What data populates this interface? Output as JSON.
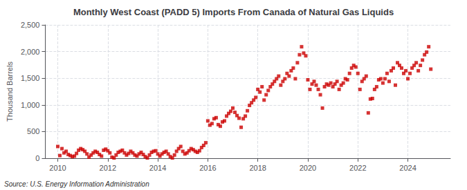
{
  "chart_data": {
    "type": "scatter",
    "title": "Monthly West Coast (PADD 5) Imports From Canada of Natural Gas Liquids",
    "ylabel": "Thousand Barrels",
    "source": "Source: U.S. Energy Information Administration",
    "color": "#cc0000",
    "marker": "square",
    "grid": true,
    "xlim": [
      2009.5,
      2025.7
    ],
    "xticks": [
      2010,
      2012,
      2014,
      2016,
      2018,
      2020,
      2022,
      2024
    ],
    "ylim": [
      0,
      2500
    ],
    "yticks": [
      0,
      500,
      {
        "value": 1000,
        "label": "1,000"
      },
      {
        "value": 1500,
        "label": "1,500"
      },
      {
        "value": 2000,
        "label": "2,000"
      },
      {
        "value": 2500,
        "label": "2,500"
      }
    ],
    "x": [
      2010.0,
      2010.083,
      2010.167,
      2010.25,
      2010.333,
      2010.417,
      2010.5,
      2010.583,
      2010.667,
      2010.75,
      2010.833,
      2010.917,
      2011.0,
      2011.083,
      2011.167,
      2011.25,
      2011.333,
      2011.417,
      2011.5,
      2011.583,
      2011.667,
      2011.75,
      2011.833,
      2011.917,
      2012.0,
      2012.083,
      2012.167,
      2012.25,
      2012.333,
      2012.417,
      2012.5,
      2012.583,
      2012.667,
      2012.75,
      2012.833,
      2012.917,
      2013.0,
      2013.083,
      2013.167,
      2013.25,
      2013.333,
      2013.417,
      2013.5,
      2013.583,
      2013.667,
      2013.75,
      2013.833,
      2013.917,
      2014.0,
      2014.083,
      2014.167,
      2014.25,
      2014.333,
      2014.417,
      2014.5,
      2014.583,
      2014.667,
      2014.75,
      2014.833,
      2014.917,
      2015.0,
      2015.083,
      2015.167,
      2015.25,
      2015.333,
      2015.417,
      2015.5,
      2015.583,
      2015.667,
      2015.75,
      2015.833,
      2015.917,
      2016.0,
      2016.083,
      2016.167,
      2016.25,
      2016.333,
      2016.417,
      2016.5,
      2016.583,
      2016.667,
      2016.75,
      2016.833,
      2016.917,
      2017.0,
      2017.083,
      2017.167,
      2017.25,
      2017.333,
      2017.417,
      2017.5,
      2017.583,
      2017.667,
      2017.75,
      2017.833,
      2017.917,
      2018.0,
      2018.083,
      2018.167,
      2018.25,
      2018.333,
      2018.417,
      2018.5,
      2018.583,
      2018.667,
      2018.75,
      2018.833,
      2018.917,
      2019.0,
      2019.083,
      2019.167,
      2019.25,
      2019.333,
      2019.417,
      2019.5,
      2019.583,
      2019.667,
      2019.75,
      2019.833,
      2019.917,
      2020.0,
      2020.083,
      2020.167,
      2020.25,
      2020.333,
      2020.417,
      2020.5,
      2020.583,
      2020.667,
      2020.75,
      2020.833,
      2020.917,
      2021.0,
      2021.083,
      2021.167,
      2021.25,
      2021.333,
      2021.417,
      2021.5,
      2021.583,
      2021.667,
      2021.75,
      2021.833,
      2021.917,
      2022.0,
      2022.083,
      2022.167,
      2022.25,
      2022.333,
      2022.417,
      2022.5,
      2022.583,
      2022.667,
      2022.75,
      2022.833,
      2022.917,
      2023.0,
      2023.083,
      2023.167,
      2023.25,
      2023.333,
      2023.417,
      2023.5,
      2023.583,
      2023.667,
      2023.75,
      2023.833,
      2023.917,
      2024.0,
      2024.083,
      2024.167,
      2024.25,
      2024.333,
      2024.417,
      2024.5,
      2024.583,
      2024.667,
      2024.75,
      2024.833,
      2024.917
    ],
    "values": [
      220,
      50,
      180,
      100,
      130,
      70,
      50,
      30,
      40,
      90,
      150,
      180,
      160,
      130,
      80,
      20,
      60,
      100,
      130,
      110,
      70,
      40,
      150,
      170,
      140,
      100,
      20,
      5,
      60,
      110,
      130,
      150,
      100,
      60,
      90,
      130,
      100,
      60,
      40,
      80,
      110,
      70,
      30,
      5,
      60,
      110,
      130,
      140,
      80,
      40,
      80,
      110,
      130,
      80,
      30,
      5,
      60,
      130,
      180,
      220,
      130,
      80,
      100,
      140,
      180,
      160,
      130,
      110,
      140,
      200,
      240,
      290,
      700,
      620,
      650,
      740,
      760,
      630,
      600,
      680,
      700,
      790,
      840,
      880,
      940,
      860,
      800,
      750,
      580,
      740,
      790,
      890,
      990,
      1040,
      1090,
      1140,
      1290,
      1240,
      1340,
      1090,
      1190,
      1270,
      1340,
      1390,
      1440,
      1490,
      1540,
      1370,
      1440,
      1490,
      1590,
      1540,
      1640,
      1690,
      1490,
      1790,
      1940,
      2090,
      1970,
      1920,
      1470,
      1290,
      1390,
      1440,
      1370,
      1290,
      1190,
      940,
      1340,
      1390,
      1370,
      1410,
      1340,
      1390,
      1440,
      1290,
      1370,
      1410,
      1490,
      1470,
      1590,
      1690,
      1740,
      1710,
      1590,
      1290,
      1440,
      1490,
      1540,
      850,
      1110,
      1120,
      1290,
      1340,
      1470,
      1490,
      1410,
      1490,
      1590,
      1440,
      1640,
      1690,
      1370,
      1790,
      1740,
      1690,
      1590,
      1640,
      1490,
      1590,
      1690,
      1740,
      1790,
      1640,
      1740,
      1840,
      1940,
      1990,
      2090,
      1670
    ]
  }
}
